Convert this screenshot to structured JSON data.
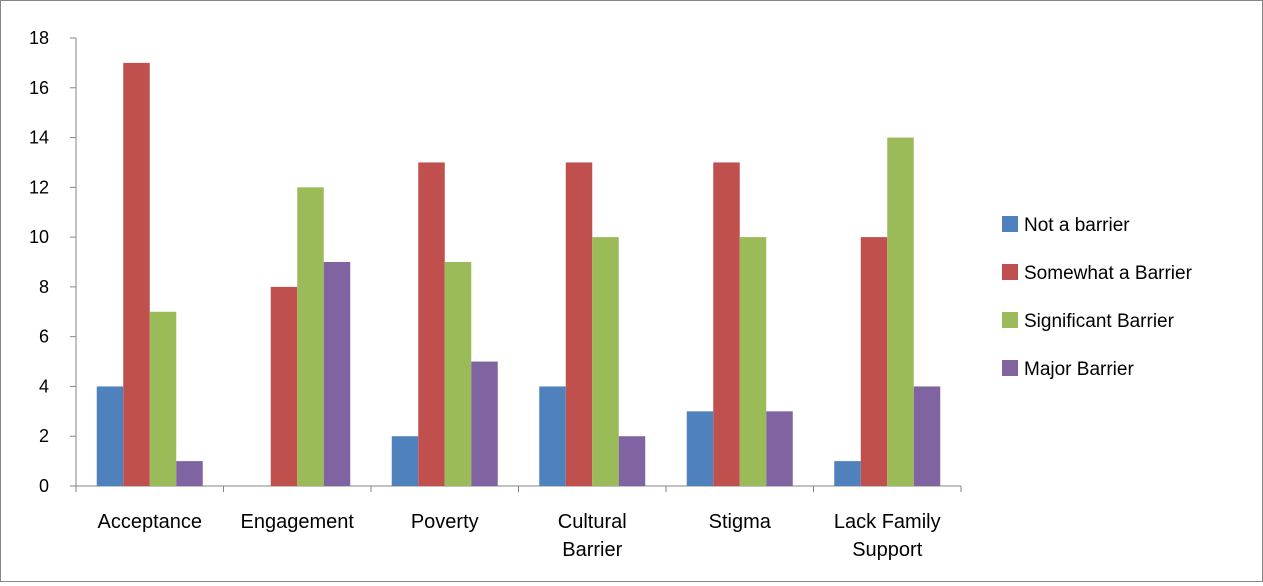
{
  "chart_data": {
    "type": "bar",
    "title": "",
    "xlabel": "",
    "ylabel": "",
    "categories": [
      [
        "Acceptance"
      ],
      [
        "Engagement"
      ],
      [
        "Poverty"
      ],
      [
        "Cultural",
        "Barrier"
      ],
      [
        "Stigma"
      ],
      [
        "Lack Family",
        "Support"
      ]
    ],
    "series": [
      {
        "name": "Not a barrier",
        "color": "#4F81BD",
        "values": [
          4,
          0,
          2,
          4,
          3,
          1
        ]
      },
      {
        "name": "Somewhat a Barrier",
        "color": "#C0504D",
        "values": [
          17,
          8,
          13,
          13,
          13,
          10
        ]
      },
      {
        "name": "Significant Barrier",
        "color": "#9BBB59",
        "values": [
          7,
          12,
          9,
          10,
          10,
          14
        ]
      },
      {
        "name": "Major Barrier",
        "color": "#8064A2",
        "values": [
          1,
          9,
          5,
          2,
          3,
          4
        ]
      }
    ],
    "ylim": [
      0,
      18
    ],
    "yticks": [
      0,
      2,
      4,
      6,
      8,
      10,
      12,
      14,
      16,
      18
    ],
    "grid": false,
    "legend": "right"
  }
}
